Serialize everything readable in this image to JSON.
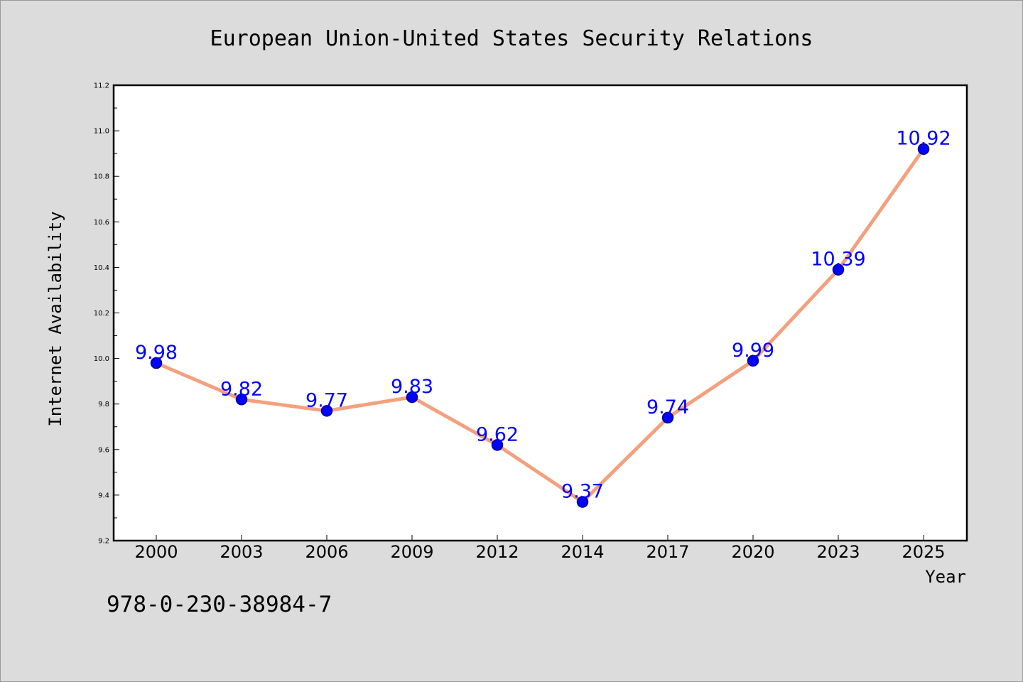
{
  "chart_data": {
    "type": "line",
    "title": "European Union-United States Security Relations",
    "xlabel": "Year",
    "ylabel": "Internet Availability",
    "categories": [
      "2000",
      "2003",
      "2006",
      "2009",
      "2012",
      "2014",
      "2017",
      "2020",
      "2023",
      "2025"
    ],
    "series": [
      {
        "values": [
          9.98,
          9.82,
          9.77,
          9.83,
          9.62,
          9.37,
          9.74,
          9.99,
          10.39,
          10.92
        ],
        "labels": [
          "9.98",
          "9.82",
          "9.77",
          "9.83",
          "9.62",
          "9.37",
          "9.74",
          "9.99",
          "10.39",
          "10.92"
        ]
      }
    ],
    "ylim": [
      9.2,
      11.2
    ],
    "yticks": [
      "9.2",
      "9.4",
      "9.6",
      "9.8",
      "10.0",
      "10.2",
      "10.4",
      "10.6",
      "10.8",
      "11.0",
      "11.2"
    ],
    "grid": false,
    "legend": "none",
    "colors": {
      "line": "#f4a07e",
      "marker": "#0000ff",
      "marker_edge": "#00008b",
      "data_label": "#0000ff",
      "plot_background": "#ffffff",
      "page_background": "#dcdcdc"
    }
  },
  "footer": {
    "isbn": "978-0-230-38984-7"
  }
}
